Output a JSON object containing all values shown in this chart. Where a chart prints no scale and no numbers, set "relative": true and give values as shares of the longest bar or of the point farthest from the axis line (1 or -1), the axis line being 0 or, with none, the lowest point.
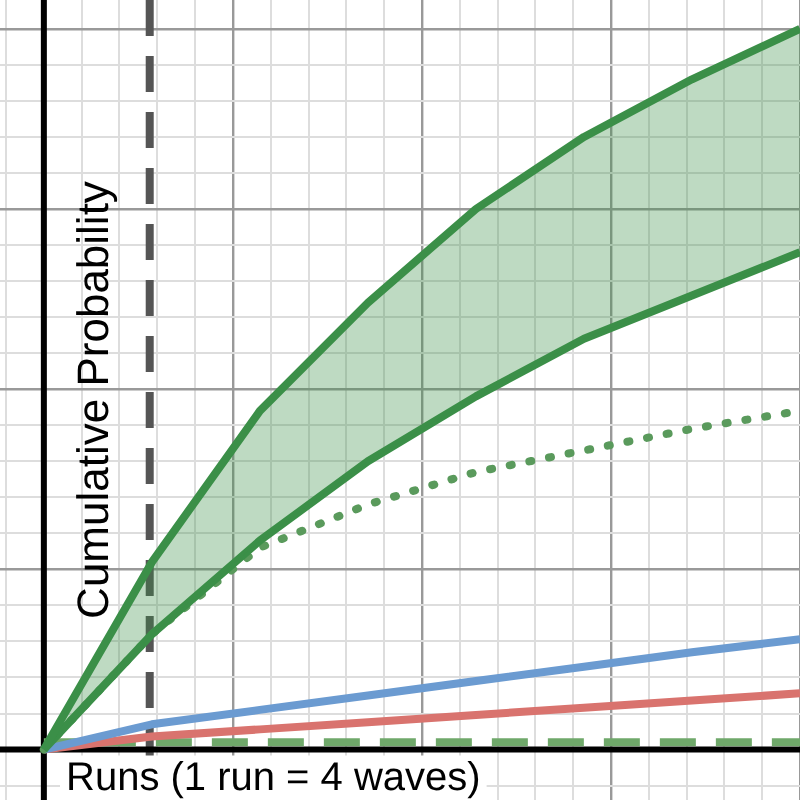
{
  "chart_data": {
    "type": "line",
    "relative": true,
    "xlabel": "Runs (1 run = 4 waves)",
    "ylabel": "Cumulative Probability",
    "grid": true,
    "marker": "none",
    "categories": [
      null,
      null,
      null,
      null,
      null,
      null,
      null,
      null
    ],
    "series": [
      {
        "type": "area",
        "color": "#3b8f48",
        "values": [
          0,
          0.26,
          0.47,
          0.62,
          0.75,
          0.85,
          0.93,
          1
        ]
      },
      {
        "color": "#3b8f48",
        "values": [
          0,
          0.16,
          0.29,
          0.4,
          0.49,
          0.57,
          0.63,
          0.69
        ]
      },
      {
        "color": "#5a9a5c",
        "line_style": "dotted",
        "values": [
          0,
          0.16,
          0.28,
          0.34,
          0.385,
          0.415,
          0.445,
          0.47
        ]
      },
      {
        "color": "#6b9bd1",
        "values": [
          0,
          0.035,
          0.055,
          0.075,
          0.095,
          0.115,
          0.135,
          0.153
        ]
      },
      {
        "color": "#d9736e",
        "values": [
          0,
          0.018,
          0.028,
          0.038,
          0.048,
          0.058,
          0.068,
          0.078
        ]
      },
      {
        "color": "#6fa86a",
        "line_style": "dashed",
        "values": [
          0.01,
          0.01,
          0.01,
          0.01,
          0.01,
          0.01,
          0.01,
          0.01
        ]
      }
    ]
  }
}
